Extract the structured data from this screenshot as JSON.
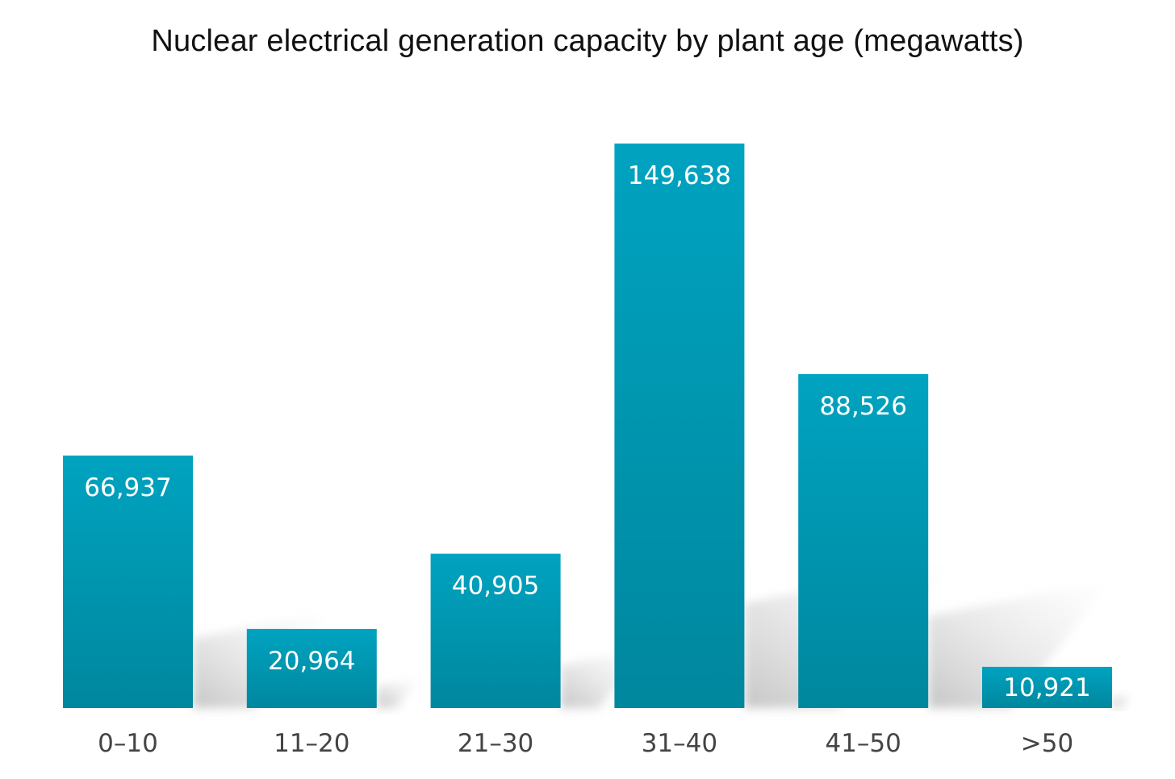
{
  "chart_data": {
    "type": "bar",
    "title": "Nuclear electrical generation capacity by plant age (megawatts)",
    "categories": [
      "0–10",
      "11–20",
      "21–30",
      "31–40",
      "41–50",
      ">50"
    ],
    "values": [
      66937,
      20964,
      40905,
      149638,
      88526,
      10921
    ],
    "value_labels": [
      "66,937",
      "20,964",
      "40,905",
      "149,638",
      "88,526",
      "10,921"
    ],
    "xlabel": "",
    "ylabel": "",
    "ylim": [
      0,
      150000
    ],
    "grid": false,
    "legend": "none",
    "colors": {
      "bar_top": "#00a3c0",
      "bar_bottom": "#00879e",
      "shadow": "#c8c8c8"
    }
  }
}
